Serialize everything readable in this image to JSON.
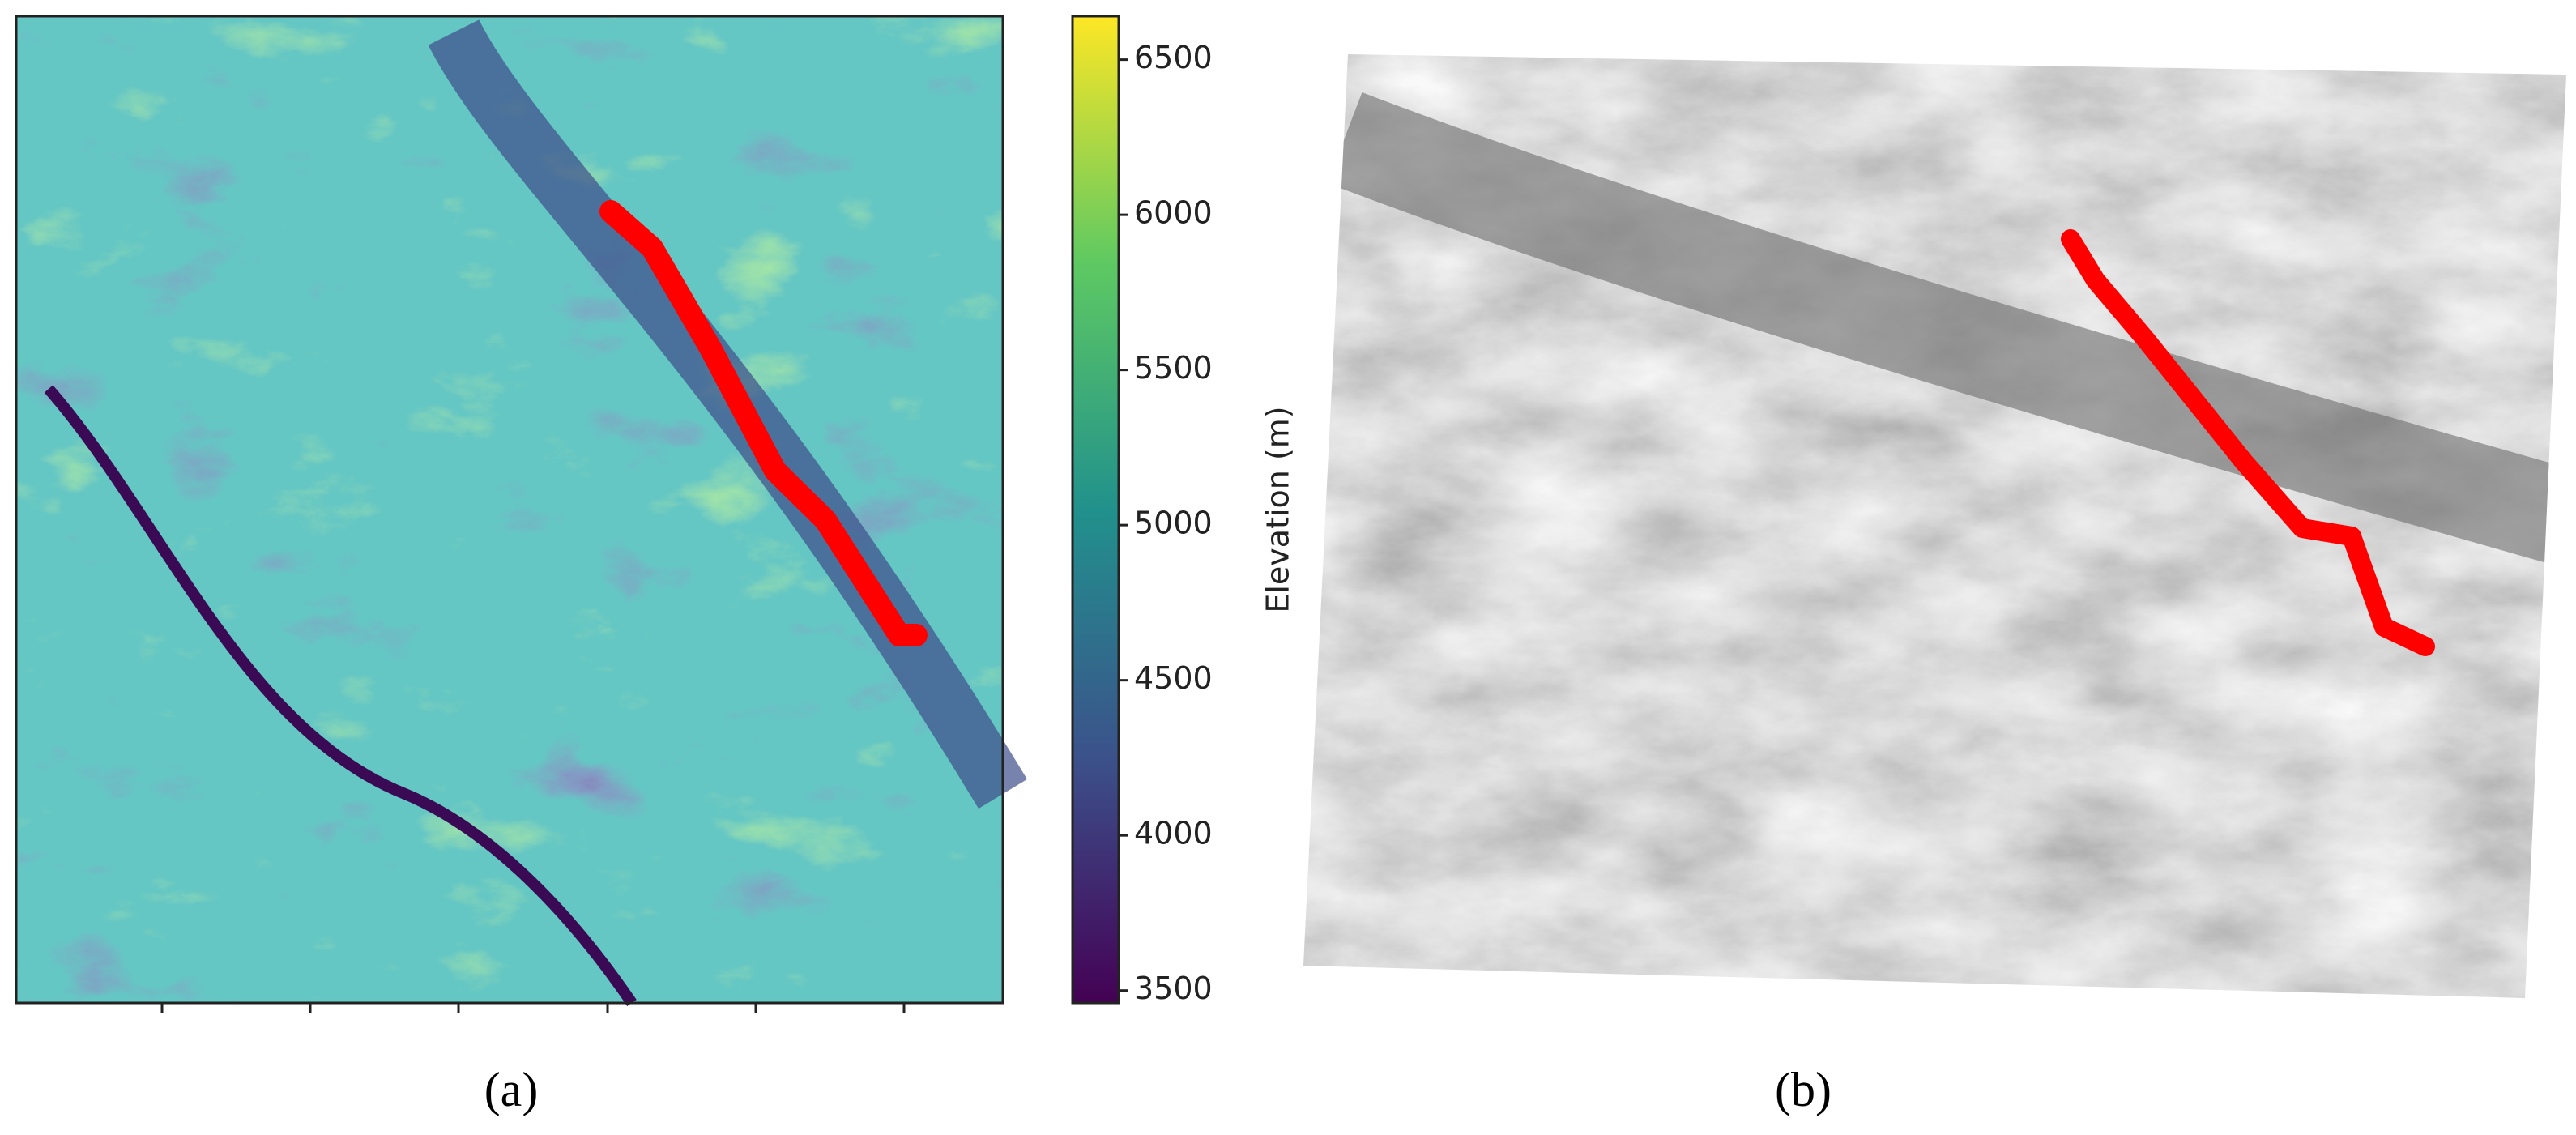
{
  "colorbar": {
    "label": "Elevation (m)",
    "lim": [
      3460,
      6640
    ],
    "ticks": [
      3500,
      4000,
      4500,
      5000,
      5500,
      6000,
      6500
    ]
  },
  "panels": [
    {
      "label": "(a)"
    },
    {
      "label": "(b)"
    }
  ]
}
